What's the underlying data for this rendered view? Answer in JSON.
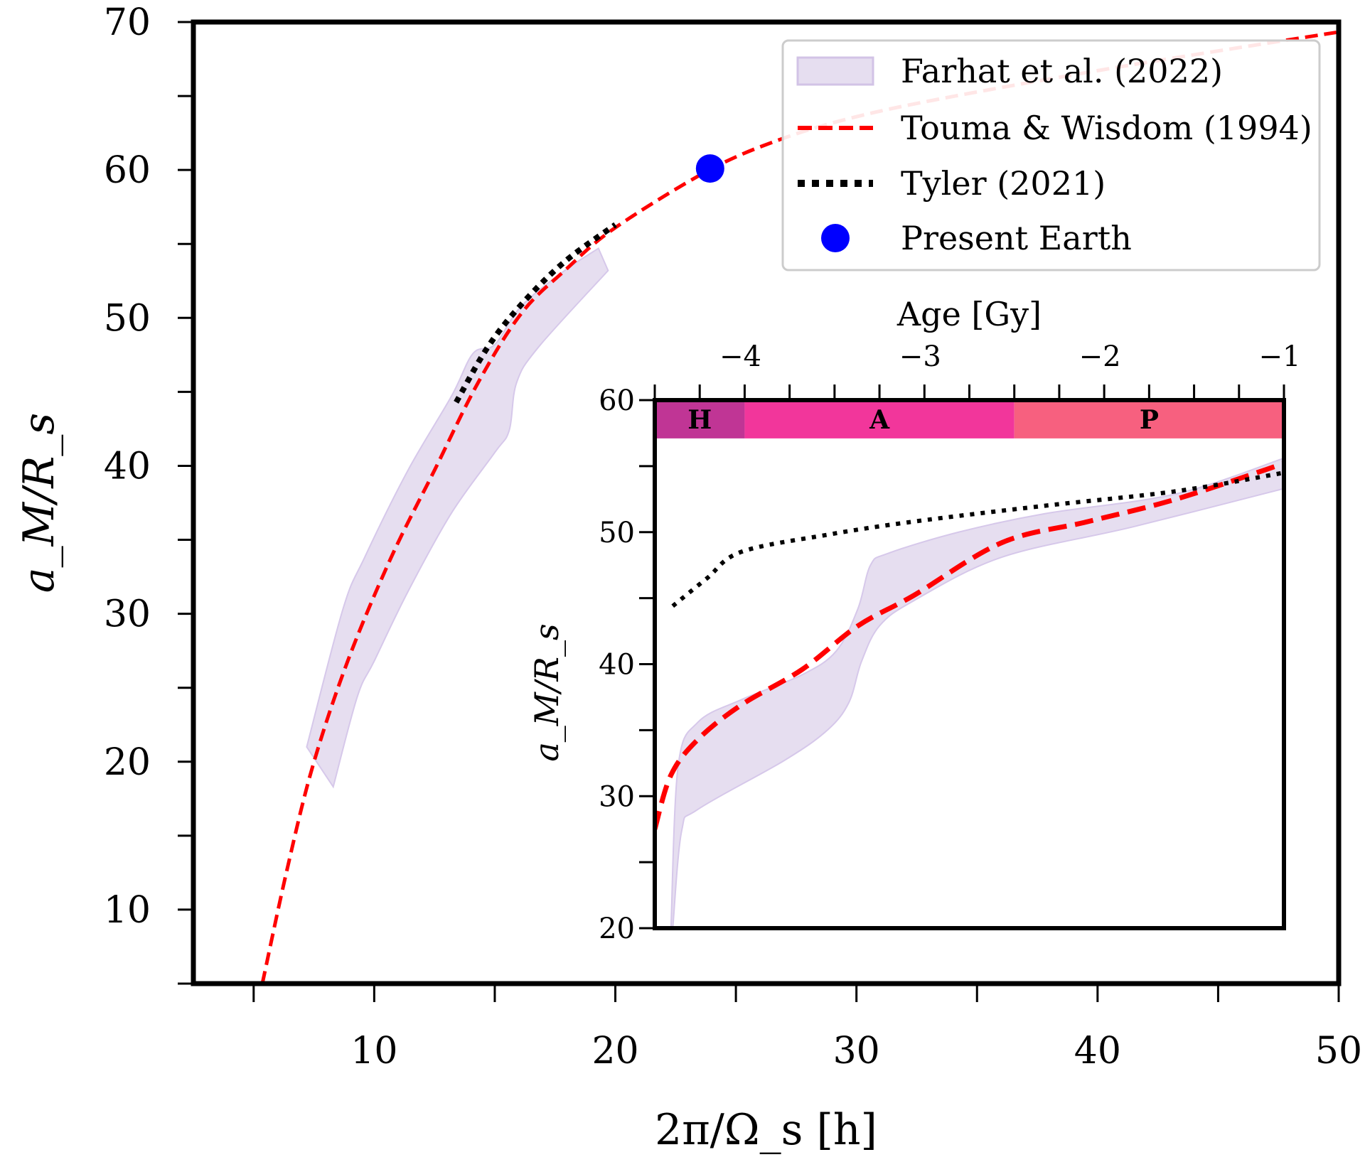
{
  "chart_data": [
    {
      "id": "main",
      "type": "line",
      "xlabel": "2π/Ω_s [h]",
      "ylabel": "a_M/R_s",
      "xlim": [
        2.5,
        50
      ],
      "ylim": [
        5,
        70
      ],
      "xticks_major": [
        10,
        20,
        30,
        40,
        50
      ],
      "xticks_minor": [
        5,
        15,
        25,
        35,
        45
      ],
      "yticks_major": [
        10,
        20,
        30,
        40,
        50,
        60,
        70
      ],
      "yticks_minor": [
        5,
        15,
        25,
        35,
        45,
        55,
        65
      ],
      "grid": false,
      "legend": {
        "position": "top-right",
        "entries": [
          {
            "label": "Farhat et al. (2022)",
            "kind": "band",
            "color": "#E6DEF0",
            "edge": "#D2C3E6"
          },
          {
            "label": "Touma & Wisdom (1994)",
            "kind": "dashed-line",
            "color": "#FF0000"
          },
          {
            "label": "Tyler (2021)",
            "kind": "dotted-line",
            "color": "#000000"
          },
          {
            "label": "Present Earth",
            "kind": "marker",
            "color": "#0000FF"
          }
        ]
      },
      "series": [
        {
          "name": "Farhat et al. (2022)",
          "kind": "band",
          "color": "#E6DEF0",
          "upper": [
            [
              7.2,
              21.0
            ],
            [
              8.7,
              30.3
            ],
            [
              9.6,
              33.8
            ],
            [
              11.4,
              39.7
            ],
            [
              13.2,
              44.7
            ],
            [
              14.1,
              47.6
            ],
            [
              15.0,
              48.2
            ],
            [
              16.1,
              50.8
            ],
            [
              17.9,
              53.2
            ],
            [
              19.3,
              54.7
            ]
          ],
          "lower": [
            [
              8.3,
              18.3
            ],
            [
              9.3,
              24.4
            ],
            [
              10.0,
              26.8
            ],
            [
              11.4,
              31.5
            ],
            [
              13.2,
              36.8
            ],
            [
              15.0,
              40.9
            ],
            [
              15.6,
              42.4
            ],
            [
              15.9,
              45.6
            ],
            [
              16.8,
              48.0
            ],
            [
              19.7,
              53.2
            ]
          ]
        },
        {
          "name": "Touma & Wisdom (1994)",
          "kind": "dashed-line",
          "color": "#FF0000",
          "points": [
            [
              5.36,
              5.0
            ],
            [
              6.37,
              12.6
            ],
            [
              7.45,
              19.7
            ],
            [
              8.9,
              26.8
            ],
            [
              10.7,
              33.8
            ],
            [
              12.5,
              39.7
            ],
            [
              14.3,
              45.6
            ],
            [
              16.1,
              50.3
            ],
            [
              17.9,
              53.2
            ],
            [
              20.0,
              56.1
            ],
            [
              23.9,
              60.0
            ],
            [
              26.9,
              62.1
            ],
            [
              30.0,
              63.6
            ],
            [
              34.1,
              65.0
            ],
            [
              41.4,
              67.1
            ],
            [
              49.9,
              69.3
            ]
          ]
        },
        {
          "name": "Tyler (2021)",
          "kind": "dotted-line",
          "color": "#000000",
          "points": [
            [
              13.4,
              44.3
            ],
            [
              14.7,
              48.0
            ],
            [
              16.1,
              50.9
            ],
            [
              17.9,
              53.8
            ],
            [
              20.0,
              56.3
            ]
          ]
        },
        {
          "name": "Present Earth",
          "kind": "marker",
          "color": "#0000FF",
          "points": [
            [
              23.93,
              60.1
            ]
          ]
        }
      ]
    },
    {
      "id": "inset",
      "type": "line",
      "xlabel": "Age [Gy]",
      "xlabel_position": "top",
      "ylabel": "a_M/R_s",
      "xlim": [
        -4.5,
        -1.0
      ],
      "ylim": [
        20,
        60
      ],
      "xticks_major": [
        -4,
        -3,
        -2,
        -1
      ],
      "xtick_labels": [
        "−4",
        "−3",
        "−2",
        "−1"
      ],
      "xticks_minor": [
        -4.5,
        -4.25,
        -3.75,
        -3.5,
        -3.25,
        -2.75,
        -2.5,
        -2.25,
        -1.75,
        -1.5,
        -1.25
      ],
      "yticks_major": [
        20,
        30,
        40,
        50,
        60
      ],
      "yticks_minor": [
        25,
        35,
        45,
        55
      ],
      "grid": false,
      "eras": [
        {
          "label": "H",
          "from": -4.5,
          "to": -4.0,
          "color": "#C03595"
        },
        {
          "label": "A",
          "from": -4.0,
          "to": -2.5,
          "color": "#F2369B"
        },
        {
          "label": "P",
          "from": -2.5,
          "to": -1.0,
          "color": "#F7607F"
        }
      ],
      "era_band_range": [
        57.1,
        60
      ],
      "series": [
        {
          "name": "Farhat et al. (2022)",
          "kind": "band",
          "color": "#E6DEF0",
          "upper": [
            [
              -4.41,
              20.0
            ],
            [
              -4.37,
              32.3
            ],
            [
              -4.26,
              35.6
            ],
            [
              -4.02,
              37.3
            ],
            [
              -3.68,
              39.2
            ],
            [
              -3.49,
              41.0
            ],
            [
              -3.37,
              44.2
            ],
            [
              -3.3,
              47.5
            ],
            [
              -3.2,
              48.4
            ],
            [
              -2.81,
              50.0
            ],
            [
              -2.33,
              51.4
            ],
            [
              -1.6,
              52.9
            ],
            [
              -1.0,
              55.6
            ]
          ],
          "lower": [
            [
              -4.4,
              20.0
            ],
            [
              -4.35,
              27.4
            ],
            [
              -4.26,
              29.0
            ],
            [
              -3.78,
              32.7
            ],
            [
              -3.54,
              35.0
            ],
            [
              -3.42,
              37.1
            ],
            [
              -3.35,
              40.2
            ],
            [
              -3.25,
              42.9
            ],
            [
              -3.06,
              44.8
            ],
            [
              -2.57,
              48.1
            ],
            [
              -1.84,
              50.4
            ],
            [
              -1.0,
              53.3
            ]
          ]
        },
        {
          "name": "Touma & Wisdom (1994)",
          "kind": "dashed-line",
          "color": "#FF0000",
          "points": [
            [
              -4.5,
              27.5
            ],
            [
              -4.41,
              31.6
            ],
            [
              -4.26,
              34.3
            ],
            [
              -4.02,
              36.9
            ],
            [
              -3.68,
              39.6
            ],
            [
              -3.37,
              42.9
            ],
            [
              -3.06,
              45.2
            ],
            [
              -2.57,
              49.2
            ],
            [
              -2.09,
              50.8
            ],
            [
              -1.6,
              52.5
            ],
            [
              -1.0,
              55.2
            ]
          ]
        },
        {
          "name": "Tyler (2021)",
          "kind": "dotted-line",
          "color": "#000000",
          "points": [
            [
              -4.4,
              44.4
            ],
            [
              -4.21,
              46.5
            ],
            [
              -4.02,
              48.5
            ],
            [
              -3.54,
              49.8
            ],
            [
              -3.06,
              50.8
            ],
            [
              -2.33,
              52.0
            ],
            [
              -1.6,
              53.1
            ],
            [
              -1.0,
              54.5
            ]
          ]
        }
      ]
    }
  ]
}
